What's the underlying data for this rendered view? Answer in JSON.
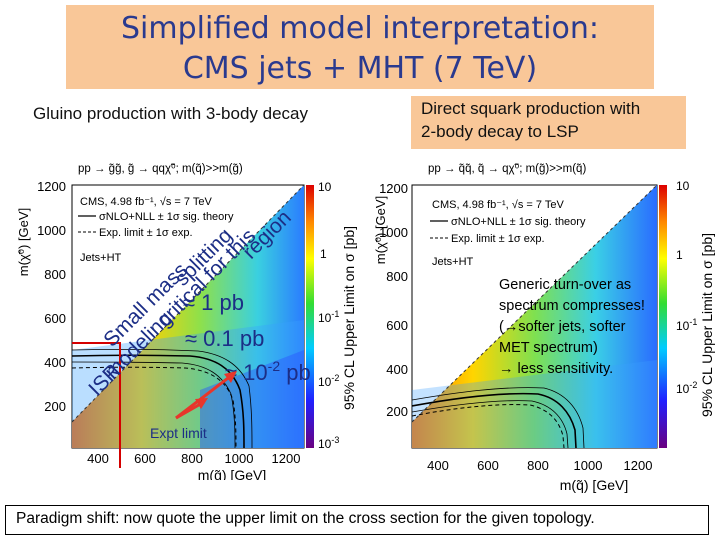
{
  "slide": {
    "title_line1": "Simplified model interpretation:",
    "title_line2": "CMS jets + MHT (7 TeV)",
    "left_heading": "Gluino production with 3-body decay",
    "right_heading_line1": "Direct squark production with",
    "right_heading_line2": "2-body decay to LSP",
    "footer": "Paradigm shift: now quote the upper limit on the cross section for the given topology.",
    "colors": {
      "title_bg": "#f9c798",
      "title_text": "#2a3a8f",
      "arrow": "#e8362b",
      "frame_line": "#d40000"
    }
  },
  "left_annotations": {
    "isr": "ISR",
    "modeling": "modeling",
    "small_mass": "Small mass",
    "critical": "critical for this",
    "splitting": "splitting",
    "region": "region",
    "pb1": "≈ 1 pb",
    "pb01": "≈ 0.1 pb",
    "pb001_prefix": "≈ 10",
    "pb001_exp": "-2",
    "pb001_suffix": " pb",
    "expt_limit": "Expt limit"
  },
  "right_annotation": {
    "line1": "Generic turn-over as",
    "line2": "spectrum compresses!",
    "line3": "(→softer jets, softer",
    "line4": "MET spectrum)",
    "line5": "→ less sensitivity."
  },
  "chart_data": [
    {
      "type": "heatmap",
      "process": "pp → g̃g̃, g̃ → qqχ̃⁰; m(q̃)>>m(g̃)",
      "xlabel": "m(g̃) [GeV]",
      "ylabel": "m(χ̃⁰) [GeV]",
      "zlabel": "95% CL Upper Limit on σ [pb]",
      "xlim": [
        300,
        1300
      ],
      "ylim": [
        100,
        1300
      ],
      "zlim": [
        0.001,
        10
      ],
      "zscale": "log",
      "x_ticks": [
        "400",
        "600",
        "800",
        "1000",
        "1200"
      ],
      "y_ticks": [
        "200",
        "400",
        "600",
        "800",
        "1000",
        "1200"
      ],
      "z_ticks": [
        {
          "base": "10",
          "exp": "",
          "value": 10
        },
        {
          "base": "1",
          "exp": "",
          "value": 1
        },
        {
          "base": "10",
          "exp": "-1",
          "value": 0.1
        },
        {
          "base": "10",
          "exp": "-2",
          "value": 0.01
        },
        {
          "base": "10",
          "exp": "-3",
          "value": 0.001
        }
      ],
      "legend": {
        "line1": "CMS, 4.98 fb⁻¹, √s = 7 TeV",
        "line2": "σNLO+NLL ± 1σ sig. theory",
        "line3": "Exp. limit ± 1σ exp.",
        "line4": "Jets+HT"
      },
      "diagonal": "m(g̃) = m(χ̃⁰)",
      "observed_limit_contour": [
        [
          300,
          400
        ],
        [
          500,
          420
        ],
        [
          700,
          430
        ],
        [
          850,
          420
        ],
        [
          950,
          370
        ],
        [
          1000,
          300
        ],
        [
          1020,
          200
        ],
        [
          1020,
          100
        ]
      ]
    },
    {
      "type": "heatmap",
      "process": "pp → q̃q̃, q̃ → qχ̃⁰; m(g̃)>>m(q̃)",
      "xlabel": "m(q̃) [GeV]",
      "ylabel": "m(χ̃⁰) [GeV]",
      "zlabel": "95% CL Upper Limit on σ [pb]",
      "xlim": [
        300,
        1300
      ],
      "ylim": [
        100,
        1300
      ],
      "zlim": [
        0.001,
        10
      ],
      "zscale": "log",
      "x_ticks": [
        "400",
        "600",
        "800",
        "1000",
        "1200"
      ],
      "y_ticks": [
        "200",
        "400",
        "600",
        "800",
        "1000",
        "1200"
      ],
      "z_ticks": [
        {
          "base": "10",
          "exp": "",
          "value": 10
        },
        {
          "base": "1",
          "exp": "",
          "value": 1
        },
        {
          "base": "10",
          "exp": "-1",
          "value": 0.1
        },
        {
          "base": "10",
          "exp": "-2",
          "value": 0.01
        }
      ],
      "legend": {
        "line1": "CMS, 4.98 fb⁻¹, √s = 7 TeV",
        "line2": "σNLO+NLL ± 1σ sig. theory",
        "line3": "Exp. limit ± 1σ exp.",
        "line4": "Jets+HT"
      },
      "diagonal": "m(q̃) = m(χ̃⁰)",
      "observed_limit_contour": [
        [
          300,
          260
        ],
        [
          420,
          300
        ],
        [
          560,
          330
        ],
        [
          700,
          320
        ],
        [
          770,
          290
        ],
        [
          820,
          230
        ],
        [
          840,
          150
        ],
        [
          840,
          100
        ]
      ]
    }
  ]
}
